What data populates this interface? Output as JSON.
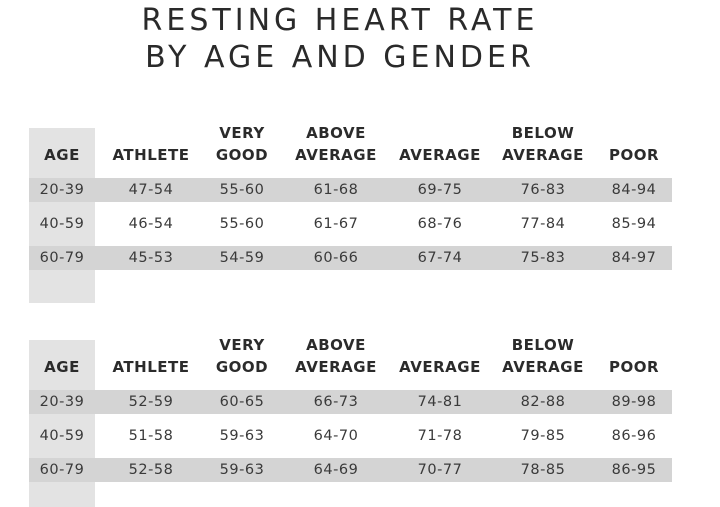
{
  "title": {
    "line1": "RESTING HEART RATE",
    "line2": "BY AGE AND GENDER"
  },
  "tables": [
    {
      "headers": {
        "age": [
          "",
          "AGE"
        ],
        "athlete": [
          "",
          "ATHLETE"
        ],
        "very_good": [
          "VERY",
          "GOOD"
        ],
        "above_average": [
          "ABOVE",
          "AVERAGE"
        ],
        "average": [
          "",
          "AVERAGE"
        ],
        "below_average": [
          "BELOW",
          "AVERAGE"
        ],
        "poor": [
          "",
          "POOR"
        ]
      },
      "rows": [
        [
          "20-39",
          "47-54",
          "55-60",
          "61-68",
          "69-75",
          "76-83",
          "84-94"
        ],
        [
          "40-59",
          "46-54",
          "55-60",
          "61-67",
          "68-76",
          "77-84",
          "85-94"
        ],
        [
          "60-79",
          "45-53",
          "54-59",
          "60-66",
          "67-74",
          "75-83",
          "84-97"
        ]
      ]
    },
    {
      "headers": {
        "age": [
          "",
          "AGE"
        ],
        "athlete": [
          "",
          "ATHLETE"
        ],
        "very_good": [
          "VERY",
          "GOOD"
        ],
        "above_average": [
          "ABOVE",
          "AVERAGE"
        ],
        "average": [
          "",
          "AVERAGE"
        ],
        "below_average": [
          "BELOW",
          "AVERAGE"
        ],
        "poor": [
          "",
          "POOR"
        ]
      },
      "rows": [
        [
          "20-39",
          "52-59",
          "60-65",
          "66-73",
          "74-81",
          "82-88",
          "89-98"
        ],
        [
          "40-59",
          "51-58",
          "59-63",
          "64-70",
          "71-78",
          "79-85",
          "86-96"
        ],
        [
          "60-79",
          "52-58",
          "59-63",
          "64-69",
          "70-77",
          "78-85",
          "86-95"
        ]
      ]
    }
  ],
  "colors": {
    "stripe": "#d4d4d4",
    "age_column": "#e3e3e3",
    "text": "#333333"
  }
}
